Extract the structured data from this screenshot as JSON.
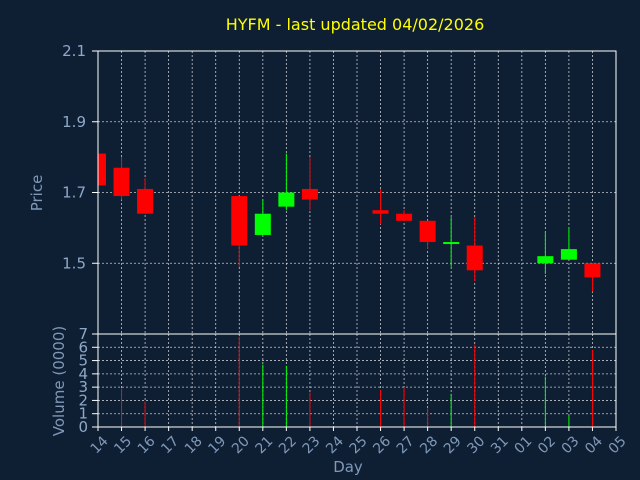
{
  "chart_data": {
    "type": "candlestick",
    "title": "HYFM - last updated 04/02/2026",
    "xlabel": "Day",
    "ylabel_price": "Price",
    "ylabel_volume": "Volume (0000)",
    "price_ylim": [
      1.3,
      2.1
    ],
    "price_ticks": [
      "1.5",
      "1.7",
      "1.9",
      "2.1"
    ],
    "volume_ylim": [
      0,
      7
    ],
    "volume_ticks": [
      "0",
      "1",
      "2",
      "3",
      "4",
      "5",
      "6",
      "7"
    ],
    "grid": true,
    "x_labels": [
      "14",
      "15",
      "16",
      "17",
      "18",
      "19",
      "20",
      "21",
      "22",
      "23",
      "24",
      "25",
      "26",
      "27",
      "28",
      "29",
      "30",
      "31",
      "01",
      "02",
      "03",
      "04",
      "05"
    ],
    "up_color": "#00ff00",
    "down_color": "#ff0000",
    "candles": [
      {
        "day": "14",
        "open": 1.81,
        "high": 1.81,
        "low": 1.72,
        "close": 1.72,
        "volume": 0
      },
      {
        "day": "15",
        "open": 1.77,
        "high": 1.8,
        "low": 1.68,
        "close": 1.69,
        "volume": 2.9
      },
      {
        "day": "16",
        "open": 1.71,
        "high": 1.74,
        "low": 1.64,
        "close": 1.64,
        "volume": 1.9
      },
      {
        "day": "20",
        "open": 1.69,
        "high": 1.69,
        "low": 1.49,
        "close": 1.55,
        "volume": 6.8
      },
      {
        "day": "21",
        "open": 1.58,
        "high": 1.68,
        "low": 1.58,
        "close": 1.64,
        "volume": 4.7
      },
      {
        "day": "22",
        "open": 1.66,
        "high": 1.81,
        "low": 1.65,
        "close": 1.7,
        "volume": 4.6
      },
      {
        "day": "23",
        "open": 1.71,
        "high": 1.8,
        "low": 1.65,
        "close": 1.68,
        "volume": 2.6
      },
      {
        "day": "26",
        "open": 1.65,
        "high": 1.71,
        "low": 1.61,
        "close": 1.64,
        "volume": 2.8
      },
      {
        "day": "27",
        "open": 1.64,
        "high": 1.65,
        "low": 1.62,
        "close": 1.62,
        "volume": 3.0
      },
      {
        "day": "28",
        "open": 1.62,
        "high": 1.62,
        "low": 1.54,
        "close": 1.56,
        "volume": 1.4
      },
      {
        "day": "29",
        "open": 1.555,
        "high": 1.63,
        "low": 1.49,
        "close": 1.56,
        "volume": 2.5
      },
      {
        "day": "30",
        "open": 1.55,
        "high": 1.63,
        "low": 1.45,
        "close": 1.48,
        "volume": 6.2
      },
      {
        "day": "02",
        "open": 1.5,
        "high": 1.59,
        "low": 1.47,
        "close": 1.52,
        "volume": 3.8
      },
      {
        "day": "03",
        "open": 1.51,
        "high": 1.6,
        "low": 1.51,
        "close": 1.54,
        "volume": 0.9
      },
      {
        "day": "04",
        "open": 1.5,
        "high": 1.5,
        "low": 1.42,
        "close": 1.46,
        "volume": 5.8
      }
    ]
  }
}
